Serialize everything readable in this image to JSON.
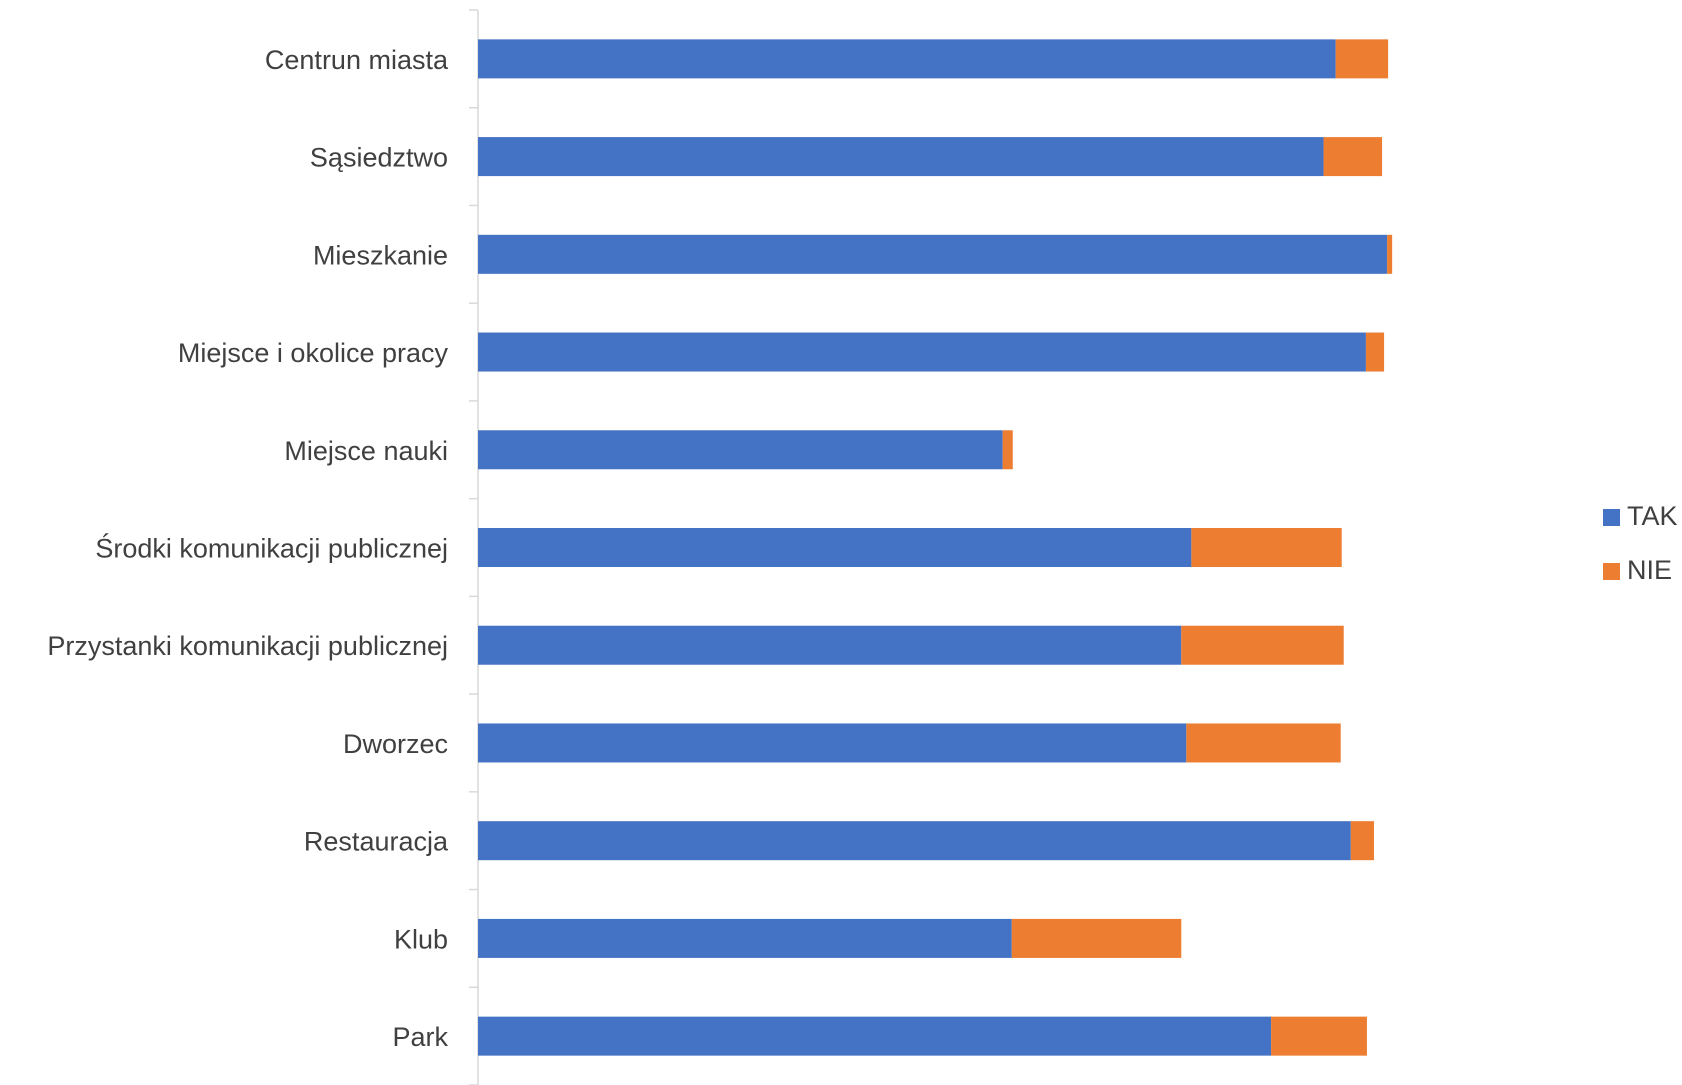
{
  "chart_data": {
    "type": "bar",
    "orientation": "horizontal",
    "stacked": true,
    "title": "",
    "xlabel": "",
    "ylabel": "",
    "xlim": [
      0,
      100
    ],
    "grid": false,
    "x_axis_visible": false,
    "legend_position": "right",
    "categories": [
      "Centrun miasta",
      "Sąsiedztwo",
      "Mieszkanie",
      "Miejsce i okolice pracy",
      "Miejsce nauki",
      "Środki komunikacji publicznej",
      "Przystanki komunikacji publicznej",
      "Dworzec",
      "Restauracja",
      "Klub",
      "Park"
    ],
    "series": [
      {
        "name": "TAK",
        "color": "#4472C4",
        "values": [
          85.0,
          83.8,
          90.1,
          88.0,
          52.0,
          70.7,
          69.7,
          70.2,
          86.5,
          52.9,
          78.6
        ]
      },
      {
        "name": "NIE",
        "color": "#ED7D31",
        "values": [
          5.2,
          5.8,
          0.5,
          1.8,
          1.0,
          14.9,
          16.1,
          15.3,
          2.3,
          16.8,
          9.5
        ]
      }
    ]
  }
}
